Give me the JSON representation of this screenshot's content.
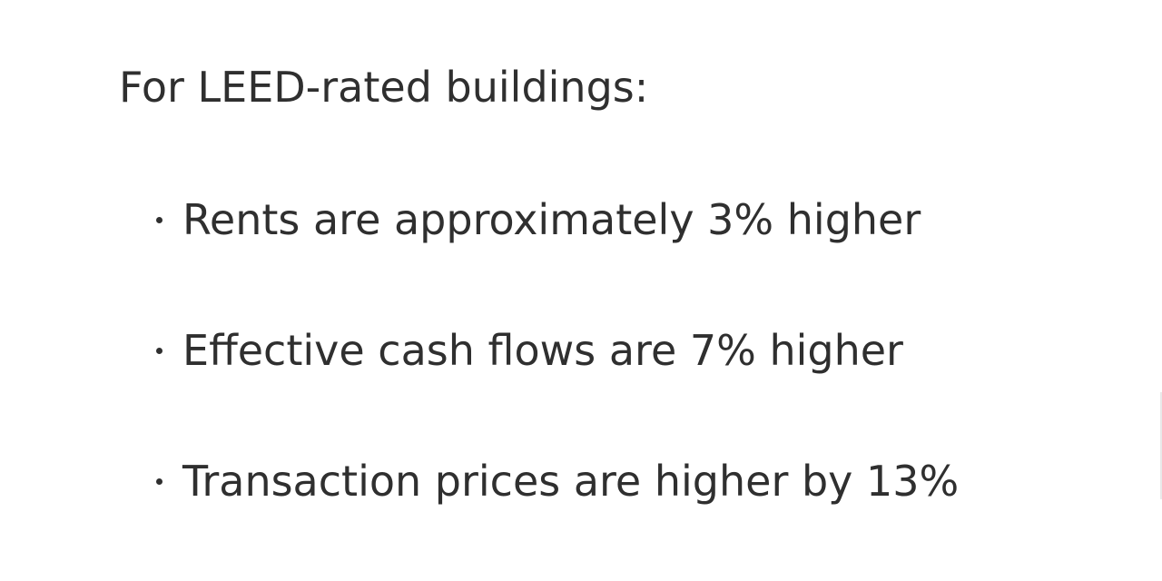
{
  "slide": {
    "heading": "For LEED-rated buildings:",
    "bullets": [
      "Rents are approximately 3% higher",
      "Effective cash flows are 7% higher",
      "Transaction prices are higher by 13%"
    ]
  }
}
